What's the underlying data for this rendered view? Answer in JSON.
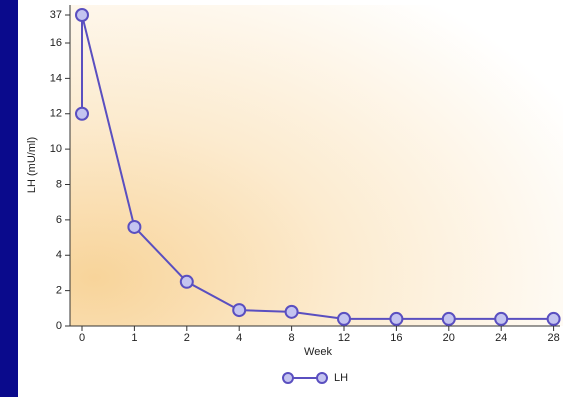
{
  "chart_data": {
    "type": "line",
    "x_label": "Week",
    "y_label": "LH (mU/ml)",
    "categories": [
      "0",
      null,
      "1",
      "2",
      "4",
      "8",
      "12",
      "16",
      "20",
      "24",
      "28"
    ],
    "series": [
      {
        "name": "LH",
        "color": "#5a4fc0",
        "values": [
          12,
          37,
          5.6,
          2.5,
          0.9,
          0.8,
          0.4,
          0.4,
          0.4,
          0.4,
          0.4
        ]
      }
    ],
    "ylim": [
      0,
      37
    ],
    "yticks": [
      0,
      2,
      4,
      6,
      8,
      10,
      12,
      14,
      16,
      37
    ]
  }
}
